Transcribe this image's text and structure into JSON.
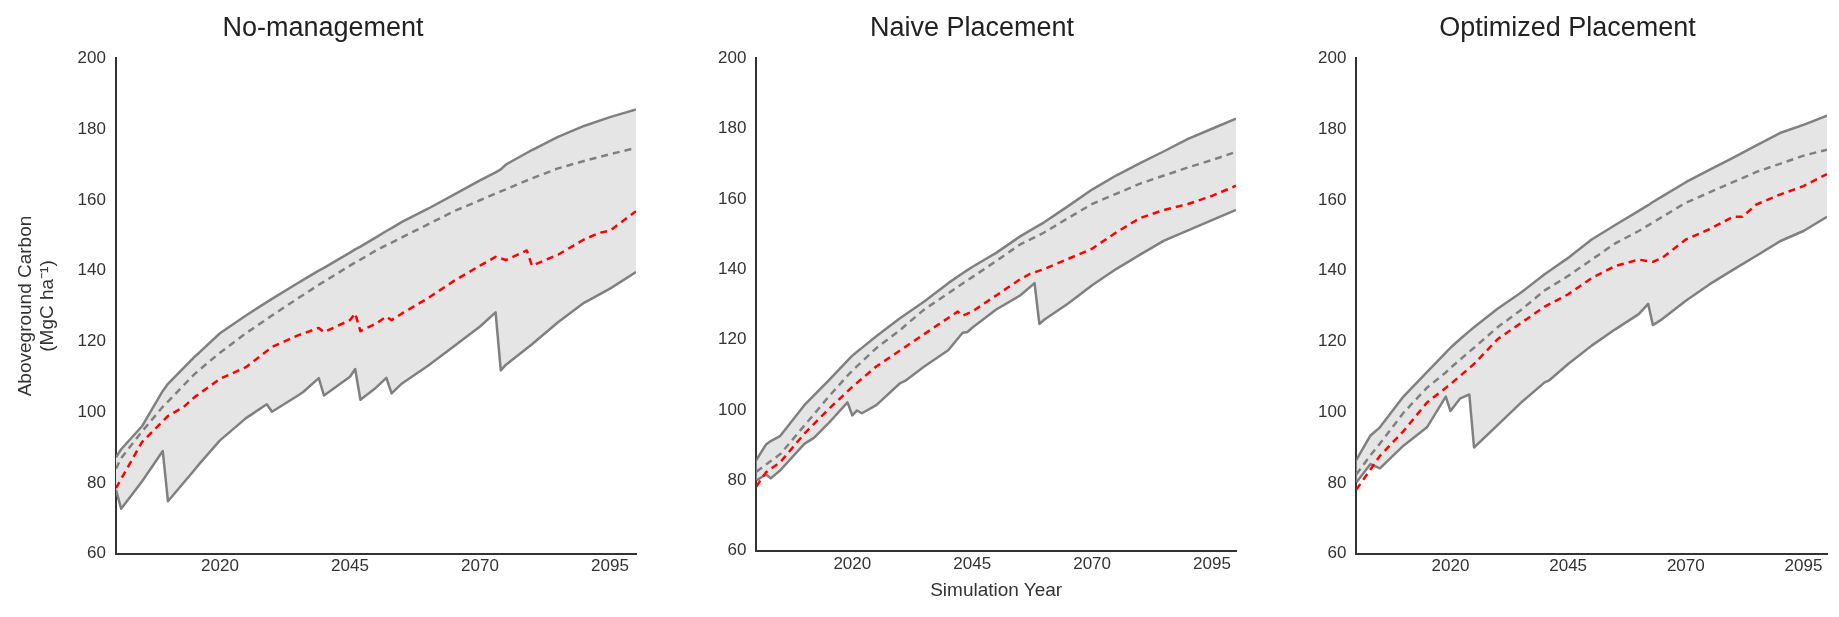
{
  "chart_data": [
    {
      "type": "line",
      "title": "No-management",
      "ylabel": "Aboveground Carbon\n(MgC ha⁻¹)",
      "xlim": [
        2000,
        2100
      ],
      "xticks": [
        2020,
        2045,
        2070,
        2095
      ],
      "ylim": [
        60,
        200
      ],
      "yticks": [
        60,
        80,
        100,
        120,
        140,
        160,
        180,
        200
      ],
      "grid": false,
      "legend": false,
      "marker": "none",
      "series": [
        {
          "color": "#808080",
          "line_style": "solid",
          "x": [
            2000,
            2001,
            2005,
            2009,
            2010,
            2015,
            2016,
            2020,
            2025,
            2029,
            2030,
            2035,
            2036,
            2039,
            2040,
            2045,
            2046,
            2047,
            2050,
            2052,
            2053,
            2055,
            2060,
            2065,
            2070,
            2073,
            2074,
            2075,
            2080,
            2085,
            2090,
            2095,
            2100
          ],
          "values": [
            87.2,
            89.5,
            96,
            106,
            108,
            115.5,
            116.8,
            122.3,
            127.3,
            131.1,
            132,
            136.5,
            137.4,
            140,
            140.8,
            145.1,
            146,
            146.8,
            149.4,
            151.2,
            152,
            153.8,
            157.5,
            161.5,
            165.5,
            167.8,
            168.6,
            170,
            174.1,
            177.8,
            180.9,
            183.4,
            185.6
          ]
        },
        {
          "color": "#808080",
          "line_style": "solid",
          "x": [
            2000,
            2001,
            2005,
            2009,
            2010,
            2015,
            2016,
            2020,
            2025,
            2029,
            2030,
            2035,
            2036,
            2039,
            2040,
            2045,
            2046,
            2047,
            2050,
            2052,
            2053,
            2055,
            2060,
            2065,
            2070,
            2073,
            2074,
            2075,
            2080,
            2085,
            2090,
            2095,
            2100
          ],
          "values": [
            78,
            72.7,
            80.4,
            89,
            74.8,
            83.5,
            85.3,
            92,
            98.3,
            102.2,
            100.1,
            104.7,
            105.7,
            109.6,
            104.7,
            110,
            112.2,
            103.5,
            106.9,
            109.7,
            105.3,
            108.1,
            113.1,
            118.6,
            124.2,
            128.2,
            111.8,
            113.4,
            119.2,
            125.4,
            130.9,
            134.9,
            139.6
          ]
        },
        {
          "color": "#808080",
          "line_style": "dashed",
          "x": [
            2000,
            2001,
            2005,
            2009,
            2010,
            2015,
            2016,
            2020,
            2025,
            2029,
            2030,
            2035,
            2036,
            2039,
            2040,
            2045,
            2046,
            2047,
            2050,
            2052,
            2053,
            2055,
            2060,
            2065,
            2070,
            2073,
            2074,
            2075,
            2080,
            2085,
            2090,
            2095,
            2100
          ],
          "values": [
            84,
            87,
            94.5,
            101.5,
            103,
            110.6,
            111.9,
            116.8,
            122.3,
            126.3,
            127.3,
            132.2,
            133.1,
            136,
            136.9,
            141.4,
            142.3,
            143.1,
            145.7,
            147.2,
            147.9,
            149.4,
            153.1,
            156.8,
            159.9,
            161.8,
            162.4,
            163,
            166.1,
            168.9,
            171,
            172.9,
            174.7
          ],
          "lower": [
            78,
            72.7,
            80.4,
            89,
            74.8,
            83.5,
            85.3,
            92,
            98.3,
            102.2,
            100.1,
            104.7,
            105.7,
            109.6,
            104.7,
            110,
            112.2,
            103.5,
            106.9,
            109.7,
            105.3,
            108.1,
            113.1,
            118.6,
            124.2,
            128.2,
            111.8,
            113.4,
            119.2,
            125.4,
            130.9,
            134.9,
            139.6
          ],
          "upper": [
            87.2,
            89.5,
            96,
            106,
            108,
            115.5,
            116.8,
            122.3,
            127.3,
            131.1,
            132,
            136.5,
            137.4,
            140,
            140.8,
            145.1,
            146,
            146.8,
            149.4,
            151.2,
            152,
            153.8,
            157.5,
            161.5,
            165.5,
            167.8,
            168.6,
            170,
            174.1,
            177.8,
            180.9,
            183.4,
            185.6
          ]
        },
        {
          "color": "#ff0000",
          "line_style": "dashed",
          "x": [
            2000,
            2005,
            2010,
            2013,
            2015,
            2020,
            2025,
            2030,
            2035,
            2039,
            2040,
            2045,
            2046,
            2047,
            2050,
            2052,
            2053,
            2055,
            2060,
            2065,
            2070,
            2073,
            2075,
            2079,
            2080,
            2085,
            2090,
            2093,
            2095,
            2100
          ],
          "values": [
            78.5,
            91.5,
            98.9,
            101.4,
            104.1,
            109.4,
            112.7,
            118.4,
            121.7,
            123.8,
            122.6,
            126,
            127.9,
            122.9,
            125,
            127,
            126,
            127.9,
            132.2,
            137.1,
            141.4,
            143.9,
            143,
            145.7,
            141.4,
            144.5,
            148.8,
            150.7,
            151.3,
            156.8
          ]
        }
      ]
    },
    {
      "type": "line",
      "title": "Naive Placement",
      "xlabel": "Simulation Year",
      "xlim": [
        2000,
        2100
      ],
      "xticks": [
        2020,
        2045,
        2070,
        2095
      ],
      "ylim": [
        60,
        200
      ],
      "yticks": [
        60,
        80,
        100,
        120,
        140,
        160,
        180,
        200
      ],
      "grid": false,
      "legend": false,
      "marker": "none",
      "series": [
        {
          "color": "#808080",
          "line_style": "solid",
          "x": [
            2000,
            2002,
            2003,
            2005,
            2010,
            2012,
            2015,
            2019,
            2020,
            2021,
            2022,
            2025,
            2030,
            2031,
            2035,
            2040,
            2043,
            2044,
            2045,
            2050,
            2055,
            2058,
            2059,
            2060,
            2065,
            2070,
            2075,
            2080,
            2085,
            2090,
            2095,
            2100
          ],
          "values": [
            85.8,
            90.2,
            91.2,
            92.7,
            101.4,
            104.2,
            108.3,
            114.1,
            115.5,
            116.6,
            117.7,
            121,
            126.2,
            127.1,
            130.9,
            136.1,
            138.9,
            139.8,
            140.7,
            144.7,
            149.4,
            151.8,
            152.6,
            153.4,
            158,
            162.7,
            166.7,
            170.2,
            173.6,
            177.1,
            180,
            182.9
          ]
        },
        {
          "color": "#808080",
          "line_style": "solid",
          "x": [
            2000,
            2002,
            2003,
            2005,
            2010,
            2012,
            2015,
            2019,
            2020,
            2021,
            2022,
            2025,
            2030,
            2031,
            2035,
            2040,
            2043,
            2044,
            2045,
            2050,
            2055,
            2058,
            2059,
            2060,
            2065,
            2070,
            2075,
            2080,
            2085,
            2090,
            2095,
            2100
          ],
          "values": [
            80,
            81.7,
            80.6,
            82.9,
            90.4,
            92.1,
            96.2,
            102.2,
            98.5,
            99.9,
            99.1,
            101.4,
            107.7,
            108.3,
            112.4,
            117,
            122,
            122.2,
            123.4,
            128.6,
            132.6,
            136.1,
            124.5,
            125.7,
            130.3,
            135.5,
            140.1,
            144.2,
            148.2,
            151.1,
            154,
            156.9
          ]
        },
        {
          "color": "#808080",
          "line_style": "dashed",
          "x": [
            2000,
            2002,
            2003,
            2005,
            2010,
            2012,
            2015,
            2019,
            2020,
            2021,
            2022,
            2025,
            2030,
            2031,
            2035,
            2040,
            2043,
            2044,
            2045,
            2050,
            2055,
            2058,
            2059,
            2060,
            2065,
            2070,
            2075,
            2080,
            2085,
            2090,
            2095,
            2100
          ],
          "values": [
            82.5,
            84.5,
            85.5,
            87.5,
            95.6,
            98.8,
            103.7,
            109.8,
            111.2,
            112.5,
            113.8,
            117.6,
            122.8,
            124,
            128.6,
            133.2,
            136,
            136.9,
            137.8,
            142.4,
            147.1,
            149.1,
            149.8,
            150.5,
            154.6,
            158.6,
            161.5,
            164.4,
            166.7,
            169,
            171.1,
            173.4
          ],
          "lower": [
            80,
            81.7,
            80.6,
            82.9,
            90.4,
            92.1,
            96.2,
            102.2,
            98.5,
            99.9,
            99.1,
            101.4,
            107.7,
            108.3,
            112.4,
            117,
            122,
            122.2,
            123.4,
            128.6,
            132.6,
            136.1,
            124.5,
            125.7,
            130.3,
            135.5,
            140.1,
            144.2,
            148.2,
            151.1,
            154,
            156.9
          ],
          "upper": [
            85.8,
            90.2,
            91.2,
            92.7,
            101.4,
            104.2,
            108.3,
            114.1,
            115.5,
            116.6,
            117.7,
            121,
            126.2,
            127.1,
            130.9,
            136.1,
            138.9,
            139.8,
            140.7,
            144.7,
            149.4,
            151.8,
            152.6,
            153.4,
            158,
            162.7,
            166.7,
            170.2,
            173.6,
            177.1,
            180,
            182.9
          ]
        },
        {
          "color": "#ff0000",
          "line_style": "dashed",
          "x": [
            2000,
            2002,
            2005,
            2010,
            2015,
            2020,
            2025,
            2030,
            2035,
            2040,
            2042,
            2043,
            2045,
            2050,
            2055,
            2057,
            2060,
            2065,
            2070,
            2075,
            2080,
            2085,
            2090,
            2095,
            2100
          ],
          "values": [
            78.3,
            82.3,
            85.2,
            93.3,
            100.2,
            106.6,
            112.4,
            117,
            121.6,
            126.2,
            128,
            126.8,
            128,
            132.6,
            137.2,
            138.7,
            140.1,
            143,
            145.9,
            150.5,
            154.6,
            156.9,
            158.6,
            160.9,
            163.8
          ]
        }
      ]
    },
    {
      "type": "line",
      "title": "Optimized Placement",
      "xlim": [
        2000,
        2100
      ],
      "xticks": [
        2020,
        2045,
        2070,
        2095
      ],
      "ylim": [
        60,
        200
      ],
      "yticks": [
        60,
        80,
        100,
        120,
        140,
        160,
        180,
        200
      ],
      "grid": false,
      "legend": false,
      "marker": "none",
      "series": [
        {
          "color": "#808080",
          "line_style": "solid",
          "x": [
            2000,
            2003,
            2005,
            2010,
            2015,
            2019,
            2020,
            2022,
            2024,
            2025,
            2030,
            2035,
            2040,
            2041,
            2045,
            2050,
            2055,
            2060,
            2062,
            2063,
            2065,
            2070,
            2075,
            2080,
            2085,
            2090,
            2095,
            2100
          ],
          "values": [
            86.5,
            93.4,
            95.7,
            104.4,
            111.3,
            116.8,
            118.2,
            120.6,
            122.9,
            124,
            129.2,
            133.8,
            139,
            139.9,
            143.6,
            148.8,
            152.9,
            156.9,
            158.5,
            159.4,
            161,
            165,
            168.5,
            171.9,
            175.4,
            178.9,
            181.2,
            183.8
          ]
        },
        {
          "color": "#808080",
          "line_style": "solid",
          "x": [
            2000,
            2003,
            2005,
            2010,
            2015,
            2019,
            2020,
            2022,
            2024,
            2025,
            2030,
            2035,
            2040,
            2041,
            2045,
            2050,
            2055,
            2060,
            2062,
            2063,
            2065,
            2070,
            2075,
            2080,
            2085,
            2090,
            2095,
            2100
          ],
          "values": [
            80.1,
            85.3,
            84.1,
            90.5,
            95.7,
            104.4,
            100.3,
            103.8,
            105,
            90,
            96.3,
            102.7,
            108.4,
            109,
            113.6,
            118.8,
            123.4,
            127.7,
            130.6,
            124.6,
            126.3,
            131.5,
            136.1,
            140.2,
            144.2,
            148.3,
            151.2,
            155.2
          ]
        },
        {
          "color": "#808080",
          "line_style": "dashed",
          "x": [
            2000,
            2003,
            2005,
            2010,
            2015,
            2019,
            2020,
            2022,
            2024,
            2025,
            2030,
            2035,
            2040,
            2041,
            2045,
            2050,
            2055,
            2060,
            2062,
            2063,
            2065,
            2070,
            2075,
            2080,
            2085,
            2090,
            2095,
            2100
          ],
          "values": [
            82.4,
            87.8,
            91.1,
            99.8,
            106.9,
            111.2,
            112.5,
            114.8,
            117.1,
            118.2,
            124,
            128.9,
            134.4,
            135.2,
            138.5,
            143.1,
            147.7,
            151.2,
            152.8,
            153.6,
            155.2,
            159.2,
            162.1,
            165,
            167.9,
            170.2,
            172.5,
            174.2
          ],
          "lower": [
            80.1,
            85.3,
            84.1,
            90.5,
            95.7,
            104.4,
            100.3,
            103.8,
            105,
            90,
            96.3,
            102.7,
            108.4,
            109,
            113.6,
            118.8,
            123.4,
            127.7,
            130.6,
            124.6,
            126.3,
            131.5,
            136.1,
            140.2,
            144.2,
            148.3,
            151.2,
            155.2
          ],
          "upper": [
            86.5,
            93.4,
            95.7,
            104.4,
            111.3,
            116.8,
            118.2,
            120.6,
            122.9,
            124,
            129.2,
            133.8,
            139,
            139.9,
            143.6,
            148.8,
            152.9,
            156.9,
            158.5,
            159.4,
            161,
            165,
            168.5,
            171.9,
            175.4,
            178.9,
            181.2,
            183.8
          ]
        },
        {
          "color": "#ff0000",
          "line_style": "dashed",
          "x": [
            2000,
            2005,
            2010,
            2015,
            2020,
            2025,
            2030,
            2035,
            2040,
            2045,
            2050,
            2055,
            2060,
            2063,
            2065,
            2070,
            2075,
            2080,
            2082,
            2085,
            2090,
            2095,
            2100
          ],
          "values": [
            78.1,
            87.6,
            94.6,
            102.7,
            107.9,
            113.6,
            120.6,
            125.2,
            129.8,
            133.3,
            137.9,
            141.3,
            143.1,
            142.5,
            143.6,
            148.8,
            151.7,
            155.2,
            155.2,
            158.7,
            161.5,
            163.9,
            167.3
          ]
        }
      ]
    }
  ]
}
